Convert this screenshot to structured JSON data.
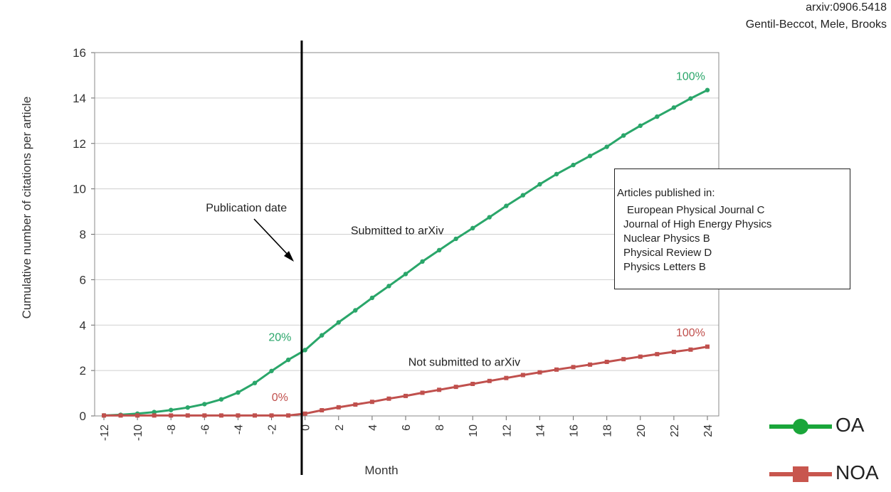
{
  "source": {
    "line1": "arxiv:0906.5418",
    "line2": "Gentil-Beccot, Mele, Brooks"
  },
  "infobox": {
    "heading": "Articles published in:",
    "items": [
      "European Physical Journal C",
      "Journal of High Energy Physics",
      "Nuclear Physics B",
      "Physical Review D",
      "Physics Letters B"
    ]
  },
  "chart_data": {
    "type": "line",
    "title": "",
    "xlabel": "Month",
    "ylabel": "Cumulative number of citations per article",
    "xlim": [
      -12,
      24
    ],
    "ylim": [
      0,
      16
    ],
    "x_ticks": [
      -12,
      -10,
      -8,
      -6,
      -4,
      -2,
      0,
      2,
      4,
      6,
      8,
      10,
      12,
      14,
      16,
      18,
      20,
      22,
      24
    ],
    "y_ticks": [
      0,
      2,
      4,
      6,
      8,
      10,
      12,
      14,
      16
    ],
    "grid": "horizontal",
    "legend_position": "bottom-right",
    "x": [
      -12,
      -11,
      -10,
      -9,
      -8,
      -7,
      -6,
      -5,
      -4,
      -3,
      -2,
      -1,
      0,
      1,
      2,
      3,
      4,
      5,
      6,
      7,
      8,
      9,
      10,
      11,
      12,
      13,
      14,
      15,
      16,
      17,
      18,
      19,
      20,
      21,
      22,
      23,
      24
    ],
    "series": [
      {
        "name": "OA",
        "color": "#2aa66a",
        "legend_color": "#1aa63a",
        "marker": "circle",
        "values": [
          0.02,
          0.05,
          0.1,
          0.17,
          0.26,
          0.37,
          0.52,
          0.73,
          1.03,
          1.45,
          1.98,
          2.47,
          2.9,
          3.55,
          4.12,
          4.65,
          5.2,
          5.72,
          6.25,
          6.8,
          7.3,
          7.8,
          8.27,
          8.75,
          9.25,
          9.72,
          10.2,
          10.65,
          11.05,
          11.45,
          11.85,
          12.35,
          12.78,
          13.18,
          13.58,
          13.98,
          14.35
        ]
      },
      {
        "name": "NOA",
        "color": "#c0504d",
        "legend_color": "#c8564e",
        "marker": "square",
        "values": [
          0.02,
          0.02,
          0.02,
          0.02,
          0.02,
          0.02,
          0.02,
          0.02,
          0.02,
          0.02,
          0.02,
          0.02,
          0.1,
          0.25,
          0.38,
          0.5,
          0.62,
          0.76,
          0.88,
          1.02,
          1.15,
          1.28,
          1.41,
          1.54,
          1.67,
          1.8,
          1.92,
          2.04,
          2.15,
          2.26,
          2.38,
          2.5,
          2.61,
          2.72,
          2.82,
          2.92,
          3.05
        ]
      }
    ],
    "publication_line_x": -0.2,
    "annotations": [
      {
        "text": "Publication date",
        "x": -3.5,
        "y": 9.0
      },
      {
        "text": "Submitted to arXiv",
        "x": 5.5,
        "y": 8.0
      },
      {
        "text": "Not submitted to arXiv",
        "x": 9.5,
        "y": 2.2
      },
      {
        "text": "20%",
        "x": -1.5,
        "y": 3.3,
        "color": "#2aa66a"
      },
      {
        "text": "100%",
        "x": 23.0,
        "y": 14.8,
        "color": "#2aa66a"
      },
      {
        "text": "0%",
        "x": -1.5,
        "y": 0.65,
        "color": "#c0504d"
      },
      {
        "text": "100%",
        "x": 23.0,
        "y": 3.5,
        "color": "#c0504d"
      }
    ]
  }
}
